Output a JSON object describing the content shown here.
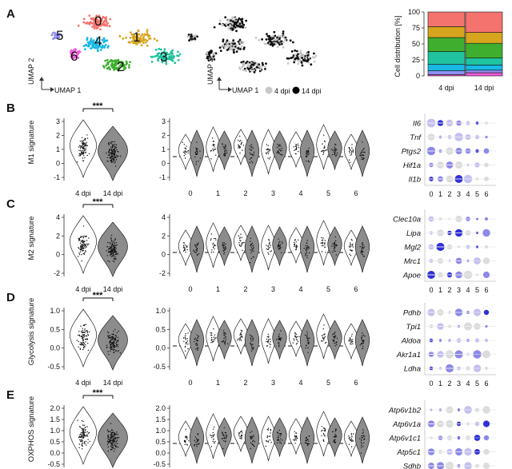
{
  "panel_letters": [
    "A",
    "B",
    "C",
    "D",
    "E"
  ],
  "umap": {
    "axis_x": "UMAP 1",
    "axis_y": "UMAP 2",
    "clusters": [
      {
        "id": "0",
        "color": "#f4736e"
      },
      {
        "id": "1",
        "color": "#d7a51d"
      },
      {
        "id": "2",
        "color": "#3fae2f"
      },
      {
        "id": "3",
        "color": "#1fc3a0"
      },
      {
        "id": "4",
        "color": "#19b8e5"
      },
      {
        "id": "5",
        "color": "#8f8ff2"
      },
      {
        "id": "6",
        "color": "#ef5bd9"
      }
    ],
    "legend": [
      {
        "label": "4 dpi",
        "color": "#c8c8c8"
      },
      {
        "label": "14 dpi",
        "color": "#000000"
      }
    ]
  },
  "distribution": {
    "ylabel": "Cell distribution [%]",
    "yticks": [
      "0",
      "25",
      "50",
      "75",
      "100"
    ],
    "bars": [
      "4 dpi",
      "14 dpi"
    ]
  },
  "panels": [
    {
      "id": "B",
      "ylabel": "M1 signature",
      "yticks": [
        "-1",
        "0",
        "1",
        "2",
        "3"
      ],
      "sig": "***",
      "genes": [
        "Il6",
        "Tnf",
        "Ptgs2",
        "Hif1a",
        "Il1b"
      ],
      "xcats": [
        "0",
        "1",
        "2",
        "3",
        "4",
        "5",
        "6"
      ],
      "dpi": [
        "4 dpi",
        "14 dpi"
      ]
    },
    {
      "id": "C",
      "ylabel": "M2 signature",
      "yticks": [
        "-2",
        "0",
        "2",
        "4"
      ],
      "sig": "***",
      "genes": [
        "Clec10a",
        "Lipa",
        "Mgl2",
        "Mrc1",
        "Apoe"
      ],
      "xcats": [
        "0",
        "1",
        "2",
        "3",
        "4",
        "5",
        "6"
      ],
      "dpi": [
        "4 dpi",
        "14 dpi"
      ]
    },
    {
      "id": "D",
      "ylabel": "Glycolysis signature",
      "yticks": [
        "-0.5",
        "0.0",
        "0.5",
        "1.0"
      ],
      "sig": "***",
      "genes": [
        "Pdhb",
        "Tpi1",
        "Aldoa",
        "Akr1a1",
        "Ldha"
      ],
      "xcats": [
        "0",
        "1",
        "2",
        "3",
        "4",
        "5",
        "6"
      ],
      "dpi": [
        "4 dpi",
        "14 dpi"
      ]
    },
    {
      "id": "E",
      "ylabel": "OXPHOS signature",
      "yticks": [
        "-0.5",
        "0.0",
        "0.5",
        "1.0",
        "1.5",
        "2.0"
      ],
      "sig": "***",
      "genes": [
        "Atp6v1b2",
        "Atp6v1a",
        "Atp6v1c1",
        "Atp5c1",
        "Sdhb"
      ],
      "xcats": [],
      "dpi": [
        "4 dpi",
        "14 dpi"
      ]
    }
  ],
  "chart_data": [
    {
      "type": "bar",
      "categories": [
        "4 dpi",
        "14 dpi"
      ],
      "stacked": true,
      "ylabel": "Cell distribution [%]",
      "ylim": [
        0,
        100
      ],
      "series": [
        {
          "name": "6",
          "color": "#ef5bd9",
          "values": [
            2,
            5
          ]
        },
        {
          "name": "5",
          "color": "#8f8ff2",
          "values": [
            6,
            4
          ]
        },
        {
          "name": "4",
          "color": "#19b8e5",
          "values": [
            10,
            8
          ]
        },
        {
          "name": "3",
          "color": "#1fc3a0",
          "values": [
            20,
            11
          ]
        },
        {
          "name": "2",
          "color": "#3fae2f",
          "values": [
            22,
            23
          ]
        },
        {
          "name": "1",
          "color": "#d7a51d",
          "values": [
            17,
            17
          ]
        },
        {
          "name": "0",
          "color": "#f4736e",
          "values": [
            23,
            32
          ]
        }
      ]
    }
  ]
}
